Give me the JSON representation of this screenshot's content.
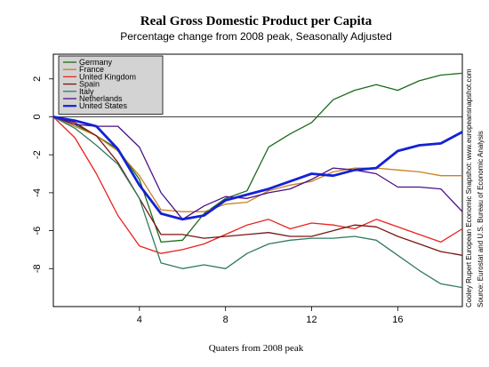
{
  "chart_data": {
    "type": "line",
    "title": "Real Gross Domestic Product per Capita",
    "subtitle": "Percentage change from 2008 peak, Seasonally Adjusted",
    "xlabel": "Quaters from 2008 peak",
    "ylabel": "",
    "xlim": [
      0,
      19
    ],
    "ylim": [
      -10,
      3.3
    ],
    "xticks": [
      4,
      8,
      12,
      16
    ],
    "yticks": [
      2,
      0,
      -2,
      -4,
      -6,
      -8
    ],
    "zero_line": true,
    "grid": false,
    "legend_position": "top-left",
    "credit_line_1": "Cooley Rupert European Economic Snapshot: www.europeansnapshot.com",
    "credit_line_2": "Source: Eurostat and U.S. Bureau of Economic Analysis",
    "x": [
      0,
      1,
      2,
      3,
      4,
      5,
      6,
      7,
      8,
      9,
      10,
      11,
      12,
      13,
      14,
      15,
      16,
      17,
      18,
      19
    ],
    "series": [
      {
        "name": "Germany",
        "color": "#1a6b1a",
        "width": 1.3,
        "values": [
          0,
          -0.4,
          -1.0,
          -1.7,
          -3.3,
          -6.6,
          -6.5,
          -5.1,
          -4.3,
          -3.9,
          -1.6,
          -0.9,
          -0.3,
          0.9,
          1.4,
          1.7,
          1.4,
          1.9,
          2.2,
          2.3
        ]
      },
      {
        "name": "France",
        "color": "#c8821e",
        "width": 1.3,
        "values": [
          0,
          -0.5,
          -1.0,
          -1.8,
          -3.1,
          -4.9,
          -5.0,
          -5.0,
          -4.6,
          -4.5,
          -3.9,
          -3.6,
          -3.4,
          -2.9,
          -2.7,
          -2.7,
          -2.8,
          -2.9,
          -3.1,
          -3.1
        ]
      },
      {
        "name": "United Kingdom",
        "color": "#e8231f",
        "width": 1.3,
        "values": [
          0,
          -1.1,
          -3.0,
          -5.2,
          -6.8,
          -7.2,
          -7.0,
          -6.7,
          -6.2,
          -5.7,
          -5.4,
          -5.9,
          -5.6,
          -5.7,
          -5.9,
          -5.4,
          -5.8,
          -6.2,
          -6.6,
          -5.9
        ]
      },
      {
        "name": "Spain",
        "color": "#7a1410",
        "width": 1.3,
        "values": [
          0,
          -0.3,
          -1.0,
          -2.4,
          -4.3,
          -6.2,
          -6.2,
          -6.4,
          -6.3,
          -6.2,
          -6.1,
          -6.3,
          -6.3,
          -6.0,
          -5.7,
          -5.8,
          -6.3,
          -6.7,
          -7.1,
          -7.3
        ]
      },
      {
        "name": "Italy",
        "color": "#2f7a62",
        "width": 1.3,
        "values": [
          0,
          -0.6,
          -1.5,
          -2.5,
          -4.3,
          -7.7,
          -8.0,
          -7.8,
          -8.0,
          -7.2,
          -6.7,
          -6.5,
          -6.4,
          -6.4,
          -6.3,
          -6.5,
          -7.3,
          -8.1,
          -8.8,
          -9.0
        ]
      },
      {
        "name": "Netherlands",
        "color": "#4a0f86",
        "width": 1.3,
        "values": [
          0,
          -0.4,
          -0.5,
          -0.5,
          -1.6,
          -4.0,
          -5.4,
          -4.7,
          -4.2,
          -4.3,
          -4.0,
          -3.8,
          -3.3,
          -2.7,
          -2.8,
          -3.0,
          -3.7,
          -3.7,
          -3.8,
          -5.0
        ]
      },
      {
        "name": "United States",
        "color": "#1421d6",
        "width": 2.8,
        "values": [
          0,
          -0.2,
          -0.5,
          -1.7,
          -3.6,
          -5.1,
          -5.4,
          -5.2,
          -4.4,
          -4.1,
          -3.8,
          -3.4,
          -3.0,
          -3.1,
          -2.8,
          -2.7,
          -1.8,
          -1.5,
          -1.4,
          -0.8
        ]
      }
    ]
  }
}
